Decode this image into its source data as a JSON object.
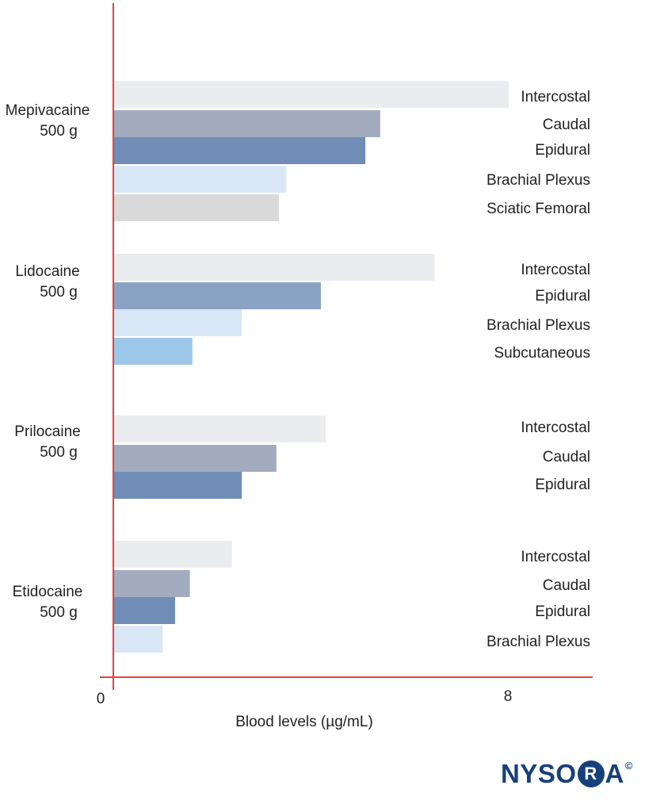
{
  "chart_data": {
    "type": "bar",
    "orientation": "horizontal",
    "xlabel": "Blood levels (µg/mL)",
    "xlim": [
      0,
      8
    ],
    "x_ticks": [
      "0",
      "8"
    ],
    "grid": false,
    "legend": "none",
    "colors": {
      "Intercostal": "#ebecef",
      "Caudal": "#a3abbf",
      "Epidural": "#6f8db6",
      "Epidural (Lidocaine)": "#8aa2c4",
      "Brachial Plexus": "#d9e6f5",
      "Sciatic Femoral": "#d9d9da",
      "Subcutaneous": "#9ec8ea",
      "axis": "#e8413c"
    },
    "groups": [
      {
        "name": "Mepivacaine",
        "dose": "500 g",
        "bars": [
          {
            "route": "Intercostal",
            "value": 8.0
          },
          {
            "route": "Caudal",
            "value": 5.4
          },
          {
            "route": "Epidural",
            "value": 5.1
          },
          {
            "route": "Brachial Plexus",
            "value": 3.5
          },
          {
            "route": "Sciatic Femoral",
            "value": 3.35
          }
        ]
      },
      {
        "name": "Lidocaine",
        "dose": "500 g",
        "bars": [
          {
            "route": "Intercostal",
            "value": 6.5
          },
          {
            "route": "Epidural",
            "value": 4.2
          },
          {
            "route": "Brachial Plexus",
            "value": 2.6
          },
          {
            "route": "Subcutaneous",
            "value": 1.6
          }
        ]
      },
      {
        "name": "Prilocaine",
        "dose": "500 g",
        "bars": [
          {
            "route": "Intercostal",
            "value": 4.3
          },
          {
            "route": "Caudal",
            "value": 3.3
          },
          {
            "route": "Epidural",
            "value": 2.6
          }
        ]
      },
      {
        "name": "Etidocaine",
        "dose": "500 g",
        "bars": [
          {
            "route": "Intercostal",
            "value": 2.4
          },
          {
            "route": "Caudal",
            "value": 1.55
          },
          {
            "route": "Epidural",
            "value": 1.25
          },
          {
            "route": "Brachial Plexus",
            "value": 1.0
          }
        ]
      }
    ]
  },
  "brand": {
    "pre": "NYSO",
    "ring": "R",
    "post": "A",
    "copyright": "©"
  }
}
